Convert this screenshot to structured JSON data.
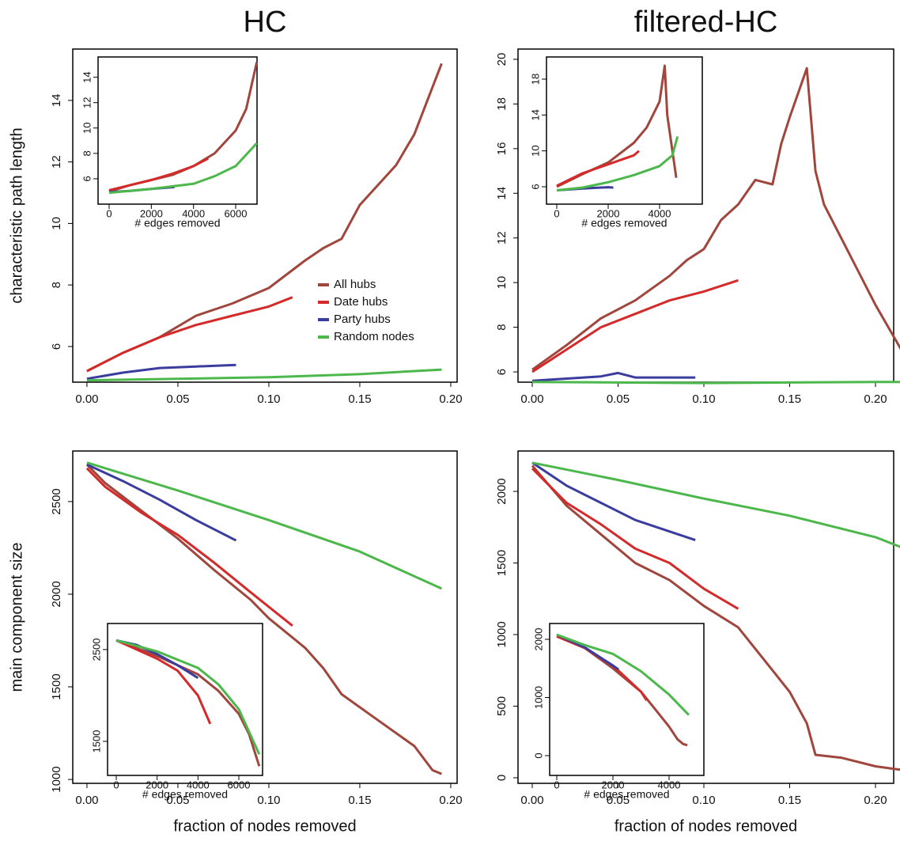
{
  "chart_data": [
    {
      "type": "line",
      "title": "HC",
      "ylabel": "characteristic path length",
      "legend": "right",
      "xlim": [
        -0.0078,
        0.2035
      ],
      "ylim": [
        4.84,
        15.67
      ],
      "xticks": [
        {
          "value": 0,
          "label": "0.00"
        },
        {
          "value": 0.05,
          "label": "0.05"
        },
        {
          "value": 0.1,
          "label": "0.10"
        },
        {
          "value": 0.15,
          "label": "0.15"
        },
        {
          "value": 0.2,
          "label": "0.20"
        }
      ],
      "yticks": [
        6,
        8,
        10,
        12,
        14
      ],
      "series": [
        {
          "name": "All hubs",
          "color": "#a0463c",
          "x": [
            0,
            0.02,
            0.04,
            0.06,
            0.08,
            0.1,
            0.12,
            0.13,
            0.14,
            0.15,
            0.17,
            0.18,
            0.195
          ],
          "values": [
            5.2,
            5.8,
            6.3,
            7.0,
            7.4,
            7.9,
            8.8,
            9.2,
            9.5,
            10.6,
            11.9,
            12.9,
            15.2
          ]
        },
        {
          "name": "Date hubs",
          "color": "#d42a2a",
          "x": [
            0,
            0.02,
            0.04,
            0.06,
            0.08,
            0.1,
            0.113
          ],
          "values": [
            5.2,
            5.8,
            6.3,
            6.7,
            7.0,
            7.3,
            7.6
          ]
        },
        {
          "name": "Party hubs",
          "color": "#3b3d9e",
          "x": [
            0,
            0.02,
            0.04,
            0.06,
            0.082
          ],
          "values": [
            4.95,
            5.15,
            5.3,
            5.35,
            5.4
          ]
        },
        {
          "name": "Random nodes",
          "color": "#4cb84c",
          "x": [
            0,
            0.05,
            0.1,
            0.15,
            0.195
          ],
          "values": [
            4.9,
            4.95,
            5.0,
            5.1,
            5.25
          ]
        }
      ]
    },
    {
      "type": "line",
      "title": "filtered-HC",
      "xlim": [
        -0.0083,
        0.2106
      ],
      "ylim": [
        5.54,
        20.46
      ],
      "xticks": [
        {
          "value": 0,
          "label": "0.00"
        },
        {
          "value": 0.05,
          "label": "0.05"
        },
        {
          "value": 0.1,
          "label": "0.10"
        },
        {
          "value": 0.15,
          "label": "0.15"
        },
        {
          "value": 0.2,
          "label": "0.20"
        }
      ],
      "yticks": [
        6,
        8,
        10,
        12,
        14,
        16,
        18,
        20
      ],
      "series": [
        {
          "color": "#a0463c",
          "x": [
            0,
            0.02,
            0.04,
            0.06,
            0.08,
            0.09,
            0.1,
            0.11,
            0.12,
            0.13,
            0.14,
            0.145,
            0.15,
            0.16,
            0.165,
            0.17,
            0.18,
            0.19,
            0.2,
            0.215
          ],
          "values": [
            6.1,
            7.2,
            8.4,
            9.2,
            10.3,
            11.0,
            11.5,
            12.8,
            13.5,
            14.6,
            14.4,
            16.2,
            17.4,
            19.6,
            15.0,
            13.5,
            12.0,
            10.5,
            9.0,
            7.0
          ]
        },
        {
          "color": "#d42a2a",
          "x": [
            0,
            0.02,
            0.04,
            0.06,
            0.08,
            0.1,
            0.12
          ],
          "values": [
            6.0,
            7.0,
            8.0,
            8.6,
            9.2,
            9.6,
            10.1
          ]
        },
        {
          "color": "#3b3d9e",
          "x": [
            0,
            0.02,
            0.04,
            0.05,
            0.06,
            0.08,
            0.095
          ],
          "values": [
            5.6,
            5.7,
            5.8,
            5.95,
            5.75,
            5.75,
            5.75
          ]
        },
        {
          "color": "#4cb84c",
          "x": [
            0,
            0.1,
            0.2,
            0.215
          ],
          "values": [
            5.55,
            5.5,
            5.55,
            5.55
          ]
        }
      ]
    },
    {
      "type": "line",
      "ylabel": "main component size",
      "xlabel": "fraction of nodes removed",
      "xlim": [
        -0.0078,
        0.2035
      ],
      "ylim": [
        979,
        2773
      ],
      "xticks": [
        {
          "value": 0,
          "label": "0.00"
        },
        {
          "value": 0.05,
          "label": "0.05"
        },
        {
          "value": 0.1,
          "label": "0.10"
        },
        {
          "value": 0.15,
          "label": "0.15"
        },
        {
          "value": 0.2,
          "label": "0.20"
        }
      ],
      "yticks": [
        1000,
        1500,
        2000,
        2500
      ],
      "series": [
        {
          "color": "#a0463c",
          "x": [
            0,
            0.01,
            0.03,
            0.05,
            0.07,
            0.09,
            0.1,
            0.12,
            0.13,
            0.14,
            0.16,
            0.18,
            0.19,
            0.195
          ],
          "values": [
            2700,
            2600,
            2450,
            2300,
            2130,
            1970,
            1870,
            1710,
            1600,
            1460,
            1320,
            1180,
            1050,
            1030
          ]
        },
        {
          "color": "#d42a2a",
          "x": [
            0,
            0.01,
            0.03,
            0.05,
            0.07,
            0.09,
            0.113
          ],
          "values": [
            2680,
            2580,
            2440,
            2320,
            2170,
            2010,
            1830
          ]
        },
        {
          "color": "#3b3d9e",
          "x": [
            0,
            0.02,
            0.04,
            0.06,
            0.082
          ],
          "values": [
            2700,
            2610,
            2510,
            2400,
            2290
          ]
        },
        {
          "color": "#4cb84c",
          "x": [
            0,
            0.05,
            0.1,
            0.15,
            0.195
          ],
          "values": [
            2710,
            2560,
            2400,
            2230,
            2030
          ]
        }
      ]
    },
    {
      "type": "line",
      "xlabel": "fraction of nodes removed",
      "xlim": [
        -0.0083,
        0.2106
      ],
      "ylim": [
        -39,
        2282
      ],
      "xticks": [
        {
          "value": 0,
          "label": "0.00"
        },
        {
          "value": 0.05,
          "label": "0.05"
        },
        {
          "value": 0.1,
          "label": "0.10"
        },
        {
          "value": 0.15,
          "label": "0.15"
        },
        {
          "value": 0.2,
          "label": "0.20"
        }
      ],
      "yticks": [
        0,
        500,
        1000,
        1500,
        2000
      ],
      "series": [
        {
          "color": "#a0463c",
          "x": [
            0,
            0.02,
            0.04,
            0.06,
            0.08,
            0.1,
            0.12,
            0.13,
            0.14,
            0.15,
            0.16,
            0.165,
            0.18,
            0.2,
            0.215
          ],
          "values": [
            2180,
            1900,
            1700,
            1500,
            1380,
            1200,
            1050,
            900,
            750,
            600,
            380,
            160,
            140,
            80,
            55
          ]
        },
        {
          "color": "#d42a2a",
          "x": [
            0,
            0.02,
            0.04,
            0.06,
            0.08,
            0.1,
            0.12
          ],
          "values": [
            2160,
            1920,
            1770,
            1600,
            1500,
            1320,
            1180
          ]
        },
        {
          "color": "#3b3d9e",
          "x": [
            0,
            0.02,
            0.04,
            0.06,
            0.08,
            0.095
          ],
          "values": [
            2200,
            2040,
            1920,
            1800,
            1720,
            1660
          ]
        },
        {
          "color": "#4cb84c",
          "x": [
            0,
            0.05,
            0.1,
            0.15,
            0.2,
            0.215
          ],
          "values": [
            2200,
            2080,
            1950,
            1830,
            1680,
            1610
          ]
        }
      ]
    },
    {
      "type": "line",
      "xlabel": "# edges removed",
      "xlim": [
        -525,
        7012
      ],
      "ylim": [
        4,
        15.6
      ],
      "xticks": [
        0,
        2000,
        4000,
        6000
      ],
      "yticks": [
        6,
        8,
        10,
        12,
        14
      ],
      "series": [
        {
          "color": "#a0463c",
          "x": [
            0,
            1000,
            2000,
            3000,
            4000,
            5000,
            6000,
            6500,
            7000
          ],
          "values": [
            5.0,
            5.5,
            5.9,
            6.3,
            7.0,
            8.0,
            9.8,
            11.5,
            15.2
          ]
        },
        {
          "color": "#d42a2a",
          "x": [
            0,
            1000,
            2000,
            3000,
            4000,
            4700
          ],
          "values": [
            5.1,
            5.5,
            5.9,
            6.4,
            7.0,
            7.6
          ]
        },
        {
          "color": "#3b3d9e",
          "x": [
            0,
            1000,
            2000,
            3100
          ],
          "values": [
            4.95,
            5.05,
            5.2,
            5.35
          ]
        },
        {
          "color": "#4cb84c",
          "x": [
            0,
            2000,
            4000,
            5000,
            6000,
            7000
          ],
          "values": [
            4.9,
            5.2,
            5.6,
            6.2,
            7.0,
            8.8
          ]
        }
      ]
    },
    {
      "type": "line",
      "xlabel": "# edges removed",
      "xlim": [
        -400,
        5662
      ],
      "ylim": [
        4.06,
        20.47
      ],
      "xticks": [
        0,
        2000,
        4000
      ],
      "yticks": [
        6,
        10,
        14,
        18
      ],
      "series": [
        {
          "color": "#a0463c",
          "x": [
            0,
            1000,
            2000,
            3000,
            3500,
            4000,
            4200,
            4300,
            4500,
            4650
          ],
          "values": [
            6.0,
            7.4,
            8.7,
            10.9,
            12.6,
            15.5,
            19.5,
            14.0,
            10.0,
            7.0
          ]
        },
        {
          "color": "#d42a2a",
          "x": [
            0,
            1000,
            2000,
            3000,
            3200
          ],
          "values": [
            6.1,
            7.5,
            8.5,
            9.5,
            10.0
          ]
        },
        {
          "color": "#3b3d9e",
          "x": [
            0,
            1000,
            2000,
            2200
          ],
          "values": [
            5.6,
            5.8,
            5.95,
            5.9
          ]
        },
        {
          "color": "#4cb84c",
          "x": [
            0,
            1000,
            2000,
            3000,
            4000,
            4500,
            4700
          ],
          "values": [
            5.6,
            5.9,
            6.5,
            7.3,
            8.3,
            9.5,
            11.6
          ]
        }
      ]
    },
    {
      "type": "line",
      "xlabel": "# edges removed",
      "xlim": [
        -426,
        7162
      ],
      "ylim": [
        1129,
        2784
      ],
      "xticks": [
        0,
        2000,
        4000,
        6000
      ],
      "yticks": [
        1500,
        2500
      ],
      "series": [
        {
          "color": "#a0463c",
          "x": [
            0,
            2000,
            4000,
            5000,
            6000,
            6500,
            7000
          ],
          "values": [
            2600,
            2430,
            2230,
            2050,
            1800,
            1580,
            1230
          ]
        },
        {
          "color": "#d42a2a",
          "x": [
            0,
            2000,
            3000,
            4000,
            4600
          ],
          "values": [
            2600,
            2400,
            2270,
            2000,
            1690
          ]
        },
        {
          "color": "#3b3d9e",
          "x": [
            0,
            1000,
            2000,
            3000,
            4000
          ],
          "values": [
            2600,
            2550,
            2450,
            2330,
            2190
          ]
        },
        {
          "color": "#4cb84c",
          "x": [
            0,
            2000,
            4000,
            5000,
            6000,
            7000
          ],
          "values": [
            2600,
            2480,
            2300,
            2120,
            1850,
            1360
          ]
        }
      ]
    },
    {
      "type": "line",
      "xlabel": "# edges removed",
      "xlim": [
        -254,
        5239
      ],
      "ylim": [
        -340,
        2272
      ],
      "xticks": [
        0,
        2000,
        4000
      ],
      "yticks": [
        0,
        1000,
        2000
      ],
      "series": [
        {
          "color": "#a0463c",
          "x": [
            0,
            1000,
            2000,
            3000,
            3500,
            4000,
            4300,
            4500,
            4650
          ],
          "values": [
            2050,
            1850,
            1500,
            1100,
            800,
            500,
            280,
            200,
            180
          ]
        },
        {
          "color": "#d42a2a",
          "x": [
            0,
            1000,
            2000,
            3000,
            3200
          ],
          "values": [
            2050,
            1850,
            1550,
            1100,
            950
          ]
        },
        {
          "color": "#3b3d9e",
          "x": [
            0,
            1000,
            2000,
            2200
          ],
          "values": [
            2080,
            1860,
            1550,
            1480
          ]
        },
        {
          "color": "#4cb84c",
          "x": [
            0,
            1000,
            2000,
            3000,
            4000,
            4700
          ],
          "values": [
            2080,
            1900,
            1750,
            1450,
            1050,
            700
          ]
        }
      ]
    }
  ]
}
